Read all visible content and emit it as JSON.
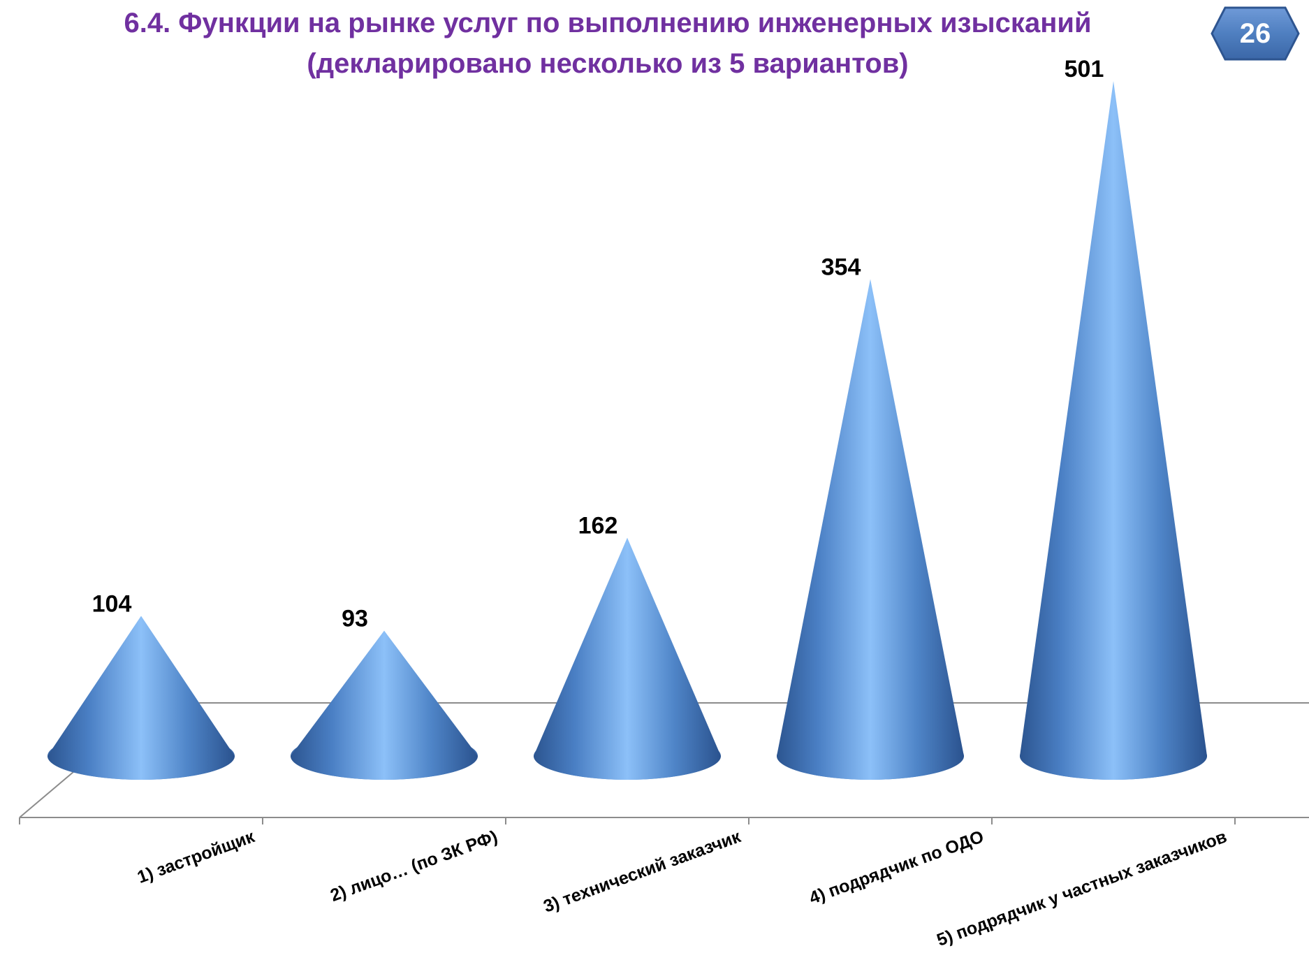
{
  "header": {
    "title_line1": "6.4. Функции на рынке услуг по выполнению инженерных изысканий",
    "title_line2": "(декларировано несколько из 5 вариантов)",
    "page_number": "26",
    "title_color": "#7030a0",
    "badge_color": "#4f7fc0"
  },
  "chart_data": {
    "type": "bar",
    "shape": "cone-3d",
    "categories": [
      "1) застройщик",
      "2) лицо… (по ЗК РФ)",
      "3) технический заказчик",
      "4) подрядчик по ОДО",
      "5) подрядчик у частных заказчиков"
    ],
    "values": [
      104,
      93,
      162,
      354,
      501
    ],
    "value_labels": [
      "104",
      "93",
      "162",
      "354",
      "501"
    ],
    "ylim": [
      0,
      501
    ],
    "grid": false,
    "legend": "none",
    "color": "#4a86d4"
  }
}
